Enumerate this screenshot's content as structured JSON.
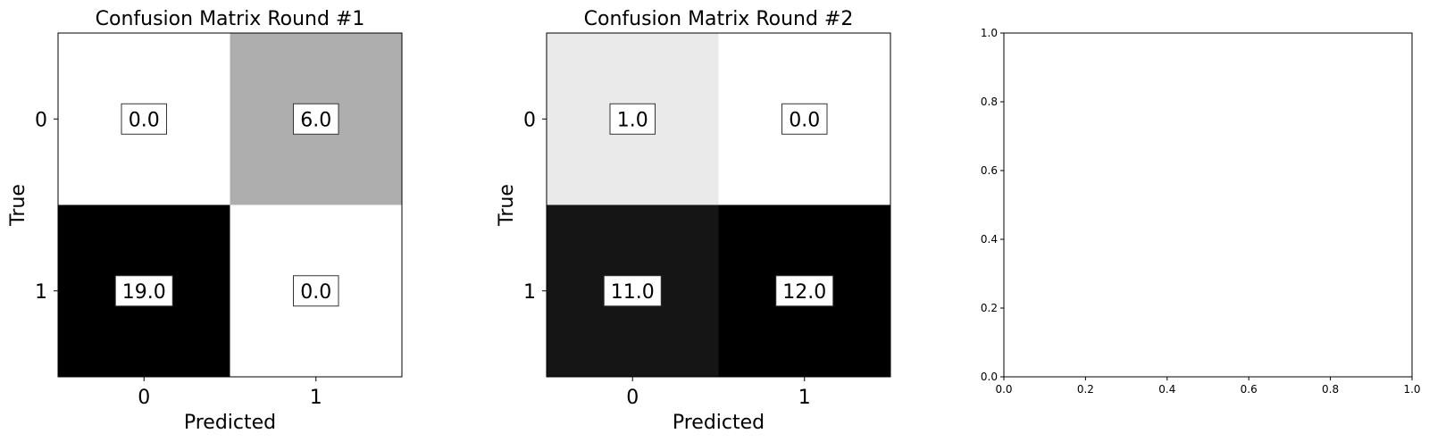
{
  "chart_data": [
    {
      "type": "heatmap",
      "title": "Confusion Matrix Round #1",
      "xlabel": "Predicted",
      "ylabel": "True",
      "x_categories": [
        "0",
        "1"
      ],
      "y_categories": [
        "0",
        "1"
      ],
      "values": [
        [
          0.0,
          6.0
        ],
        [
          19.0,
          0.0
        ]
      ],
      "value_labels": [
        [
          "0.0",
          "6.0"
        ],
        [
          "19.0",
          "0.0"
        ]
      ],
      "colormap": "grayscale (white = low, black = high)"
    },
    {
      "type": "heatmap",
      "title": "Confusion Matrix Round #2",
      "xlabel": "Predicted",
      "ylabel": "True",
      "x_categories": [
        "0",
        "1"
      ],
      "y_categories": [
        "0",
        "1"
      ],
      "values": [
        [
          1.0,
          0.0
        ],
        [
          11.0,
          12.0
        ]
      ],
      "value_labels": [
        [
          "1.0",
          "0.0"
        ],
        [
          "11.0",
          "12.0"
        ]
      ],
      "colormap": "grayscale (white = low, black = high)"
    },
    {
      "type": "line",
      "title": "",
      "xlabel": "",
      "ylabel": "",
      "series": [],
      "xlim": [
        0.0,
        1.0
      ],
      "ylim": [
        0.0,
        1.0
      ],
      "x_ticks": [
        "0.0",
        "0.2",
        "0.4",
        "0.6",
        "0.8",
        "1.0"
      ],
      "y_ticks": [
        "0.0",
        "0.2",
        "0.4",
        "0.6",
        "0.8",
        "1.0"
      ]
    }
  ]
}
